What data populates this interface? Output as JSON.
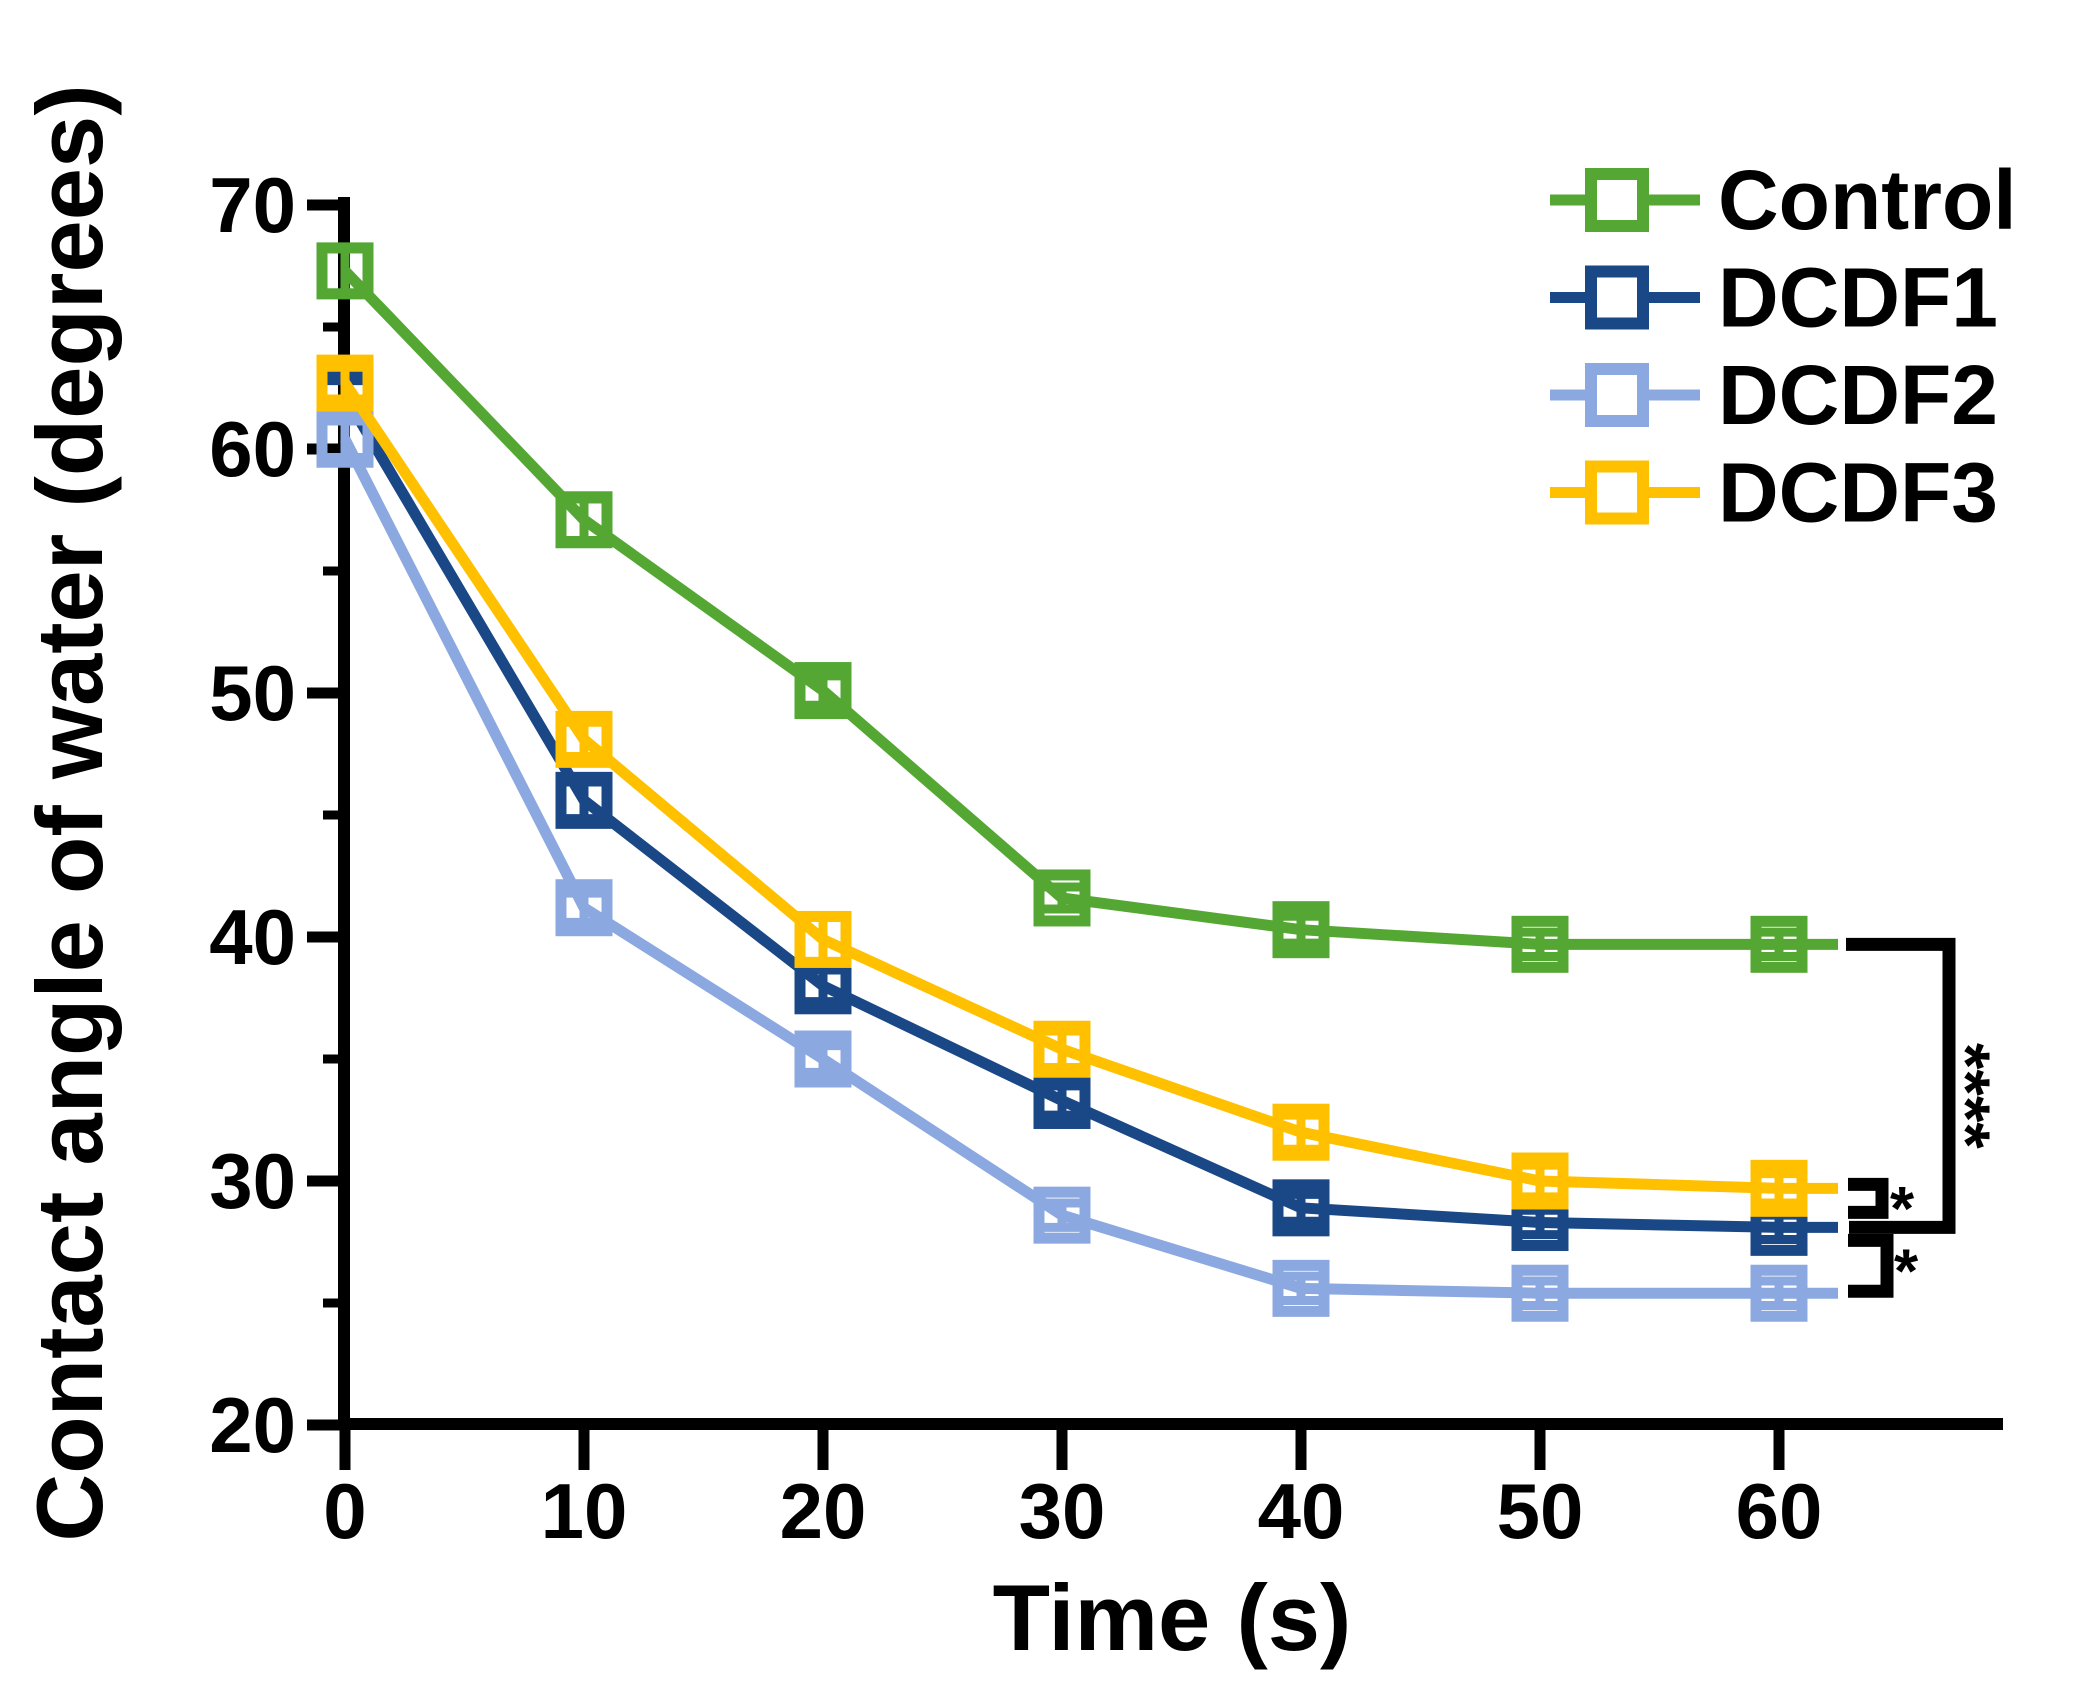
{
  "figure": {
    "background": "#ffffff",
    "axis_color": "#000000",
    "description": "Line chart of water contact angle versus time for four membrane samples with error bars and significance brackets"
  },
  "chart_data": {
    "type": "line",
    "title": "",
    "xlabel": "Time (s)",
    "ylabel": "Contact angle of water (degrees)",
    "x": [
      0,
      10,
      20,
      30,
      40,
      50,
      60
    ],
    "xlim": [
      0,
      69
    ],
    "ylim": [
      20,
      70
    ],
    "x_ticks": [
      "0",
      "10",
      "20",
      "30",
      "40",
      "50",
      "60"
    ],
    "y_ticks": [
      "20",
      "30",
      "40",
      "50",
      "60",
      "70"
    ],
    "y_tick_values": [
      20,
      30,
      40,
      50,
      60,
      70
    ],
    "y_minor_tick_values": [
      25,
      35,
      45,
      55,
      65
    ],
    "grid": false,
    "legend_position": "top-right",
    "marker": "open-square",
    "series": [
      {
        "name": "Control",
        "color": "#55A733",
        "values": [
          67.3,
          57.1,
          50.1,
          41.6,
          40.3,
          39.7,
          39.7
        ],
        "errors": [
          0.9,
          0.85,
          0.6,
          0.45,
          0.55,
          0.5,
          0.5
        ]
      },
      {
        "name": "DCDF1",
        "color": "#1A4786",
        "values": [
          62.2,
          45.6,
          38.0,
          33.3,
          28.9,
          28.3,
          28.1
        ],
        "errors": [
          0.6,
          0.75,
          0.65,
          0.6,
          0.55,
          0.5,
          0.5
        ]
      },
      {
        "name": "DCDF2",
        "color": "#8CA8E0",
        "values": [
          60.4,
          41.2,
          35.0,
          28.6,
          25.6,
          25.4,
          25.4
        ],
        "errors": [
          0.75,
          0.6,
          0.55,
          0.5,
          0.5,
          0.5,
          0.5
        ]
      },
      {
        "name": "DCDF3",
        "color": "#FFC000",
        "values": [
          62.7,
          48.1,
          39.9,
          35.4,
          32.0,
          30.0,
          29.7
        ],
        "errors": [
          0.65,
          0.7,
          0.9,
          0.75,
          0.7,
          0.65,
          0.6
        ]
      }
    ],
    "annotations": [
      {
        "label": "****",
        "between": [
          "Control",
          "DCDF1"
        ],
        "style": "large-right-bracket"
      },
      {
        "label": "*",
        "between": [
          "DCDF3",
          "DCDF1"
        ],
        "style": "small-bracket"
      },
      {
        "label": "*",
        "between": [
          "DCDF1",
          "DCDF2"
        ],
        "style": "small-bracket"
      }
    ]
  }
}
